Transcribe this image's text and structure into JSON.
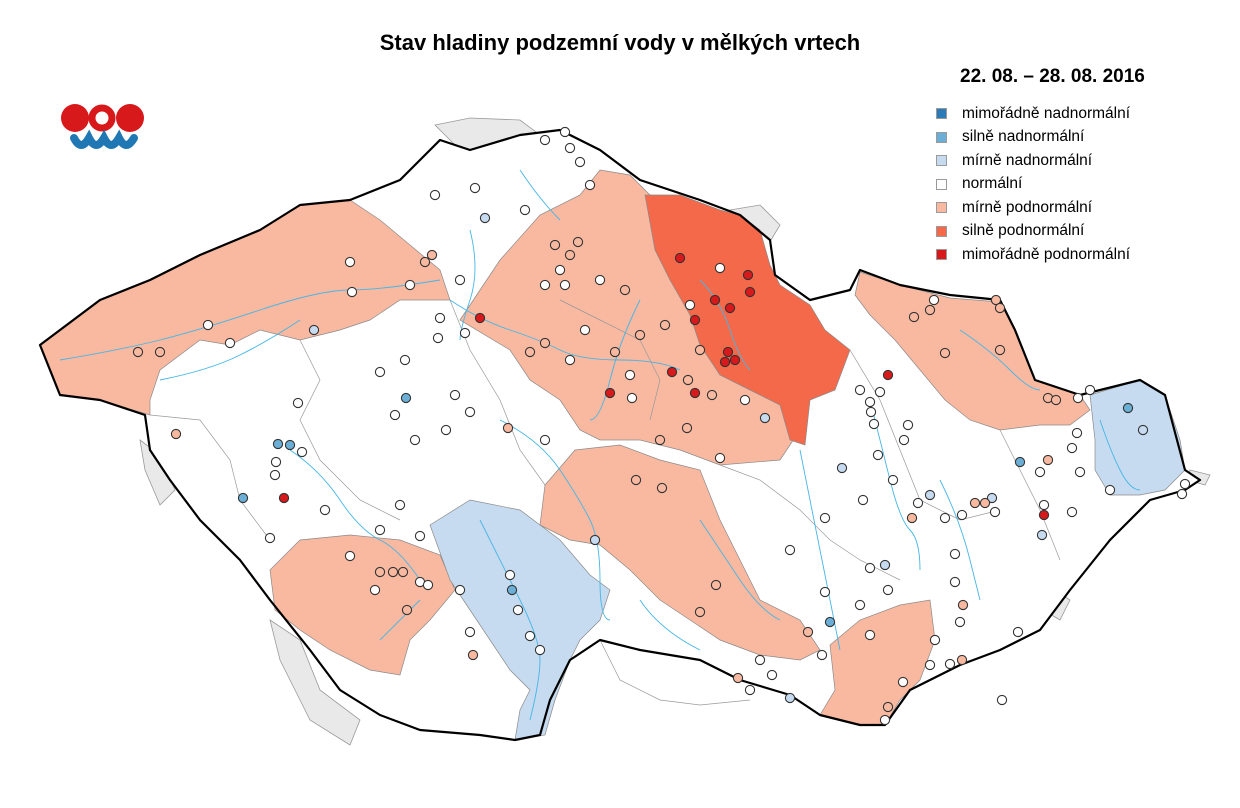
{
  "header": {
    "title": "Stav hladiny podzemní vody v mělkých vrtech",
    "date": "22. 08. – 28. 08. 2016"
  },
  "logo": {
    "name": "chmi-logo",
    "colors": {
      "red": "#d7191c",
      "blue": "#1f78b4"
    }
  },
  "legend": {
    "items": [
      {
        "label": "mimořádně nadnormální",
        "color": "#2c7bb6"
      },
      {
        "label": "silně nadnormální",
        "color": "#6baed6"
      },
      {
        "label": "mírně nadnormální",
        "color": "#c6dbef"
      },
      {
        "label": "normální",
        "color": "#ffffff"
      },
      {
        "label": "mírně podnormální",
        "color": "#f8b9a0"
      },
      {
        "label": "silně podnormální",
        "color": "#f4694a"
      },
      {
        "label": "mimořádně podnormální",
        "color": "#d7191c"
      }
    ]
  },
  "map": {
    "country": "Czech Republic",
    "outside_fill": "#e9e9e9",
    "river_color": "#45b6e6",
    "well_categories": [
      "mimořádně nadnormální",
      "silně nadnormální",
      "mírně nadnormální",
      "normální",
      "mírně podnormální",
      "silně podnormální",
      "mimořádně podnormální"
    ]
  }
}
